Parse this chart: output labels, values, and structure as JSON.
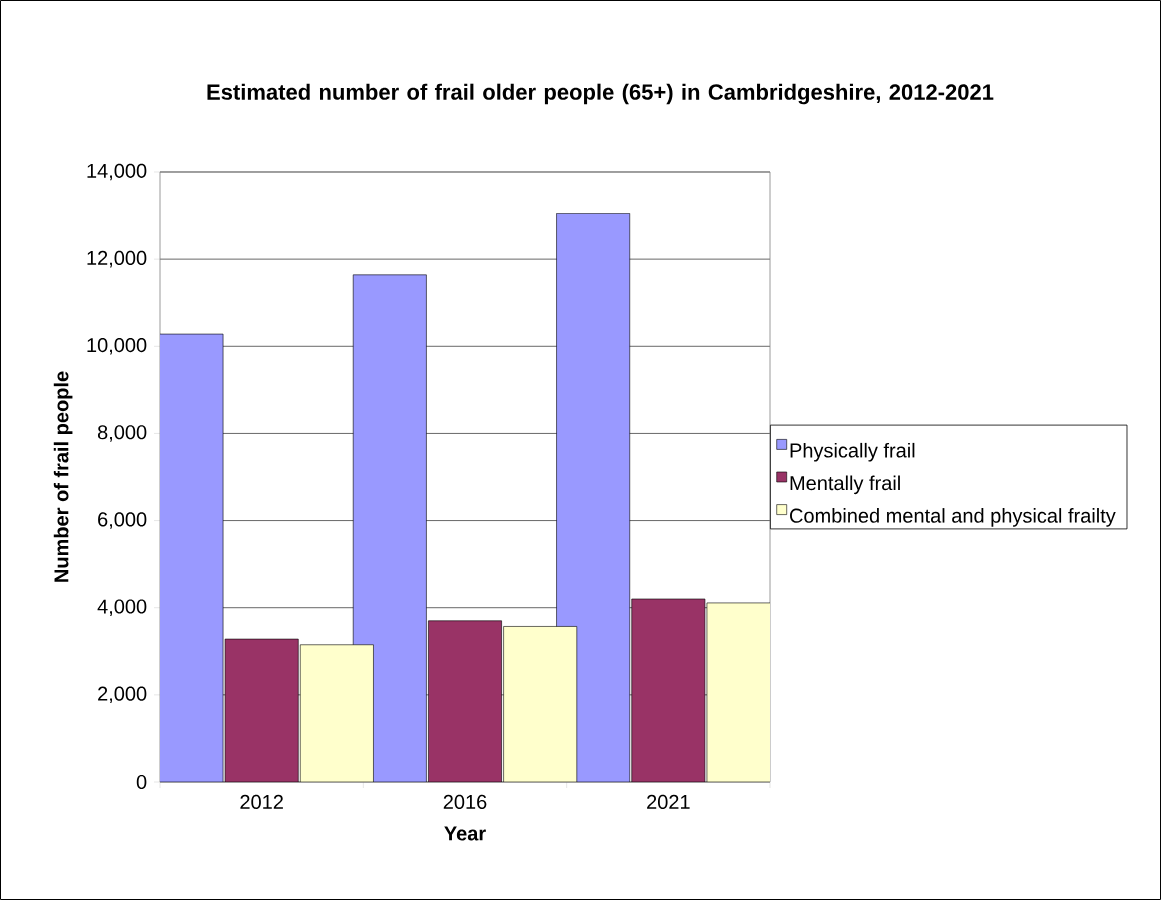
{
  "chart_data": {
    "type": "bar",
    "title": "Estimated number of frail older people (65+) in Cambridgeshire, 2012-2021",
    "xlabel": "Year",
    "ylabel": "Number of frail people",
    "categories": [
      "2012",
      "2016",
      "2021"
    ],
    "series": [
      {
        "name": "Physically frail",
        "color": "#9999ff",
        "values": [
          10280,
          11640,
          13050
        ]
      },
      {
        "name": "Mentally frail",
        "color": "#993366",
        "values": [
          3280,
          3700,
          4200
        ]
      },
      {
        "name": "Combined mental and physical frailty",
        "color": "#ffffcc",
        "values": [
          3150,
          3570,
          4110
        ]
      }
    ],
    "ylim": [
      0,
      14000
    ],
    "yticks": [
      {
        "value": 0,
        "label": "0"
      },
      {
        "value": 2000,
        "label": "2,000"
      },
      {
        "value": 4000,
        "label": "4,000"
      },
      {
        "value": 6000,
        "label": "6,000"
      },
      {
        "value": 8000,
        "label": "8,000"
      },
      {
        "value": 10000,
        "label": "10,000"
      },
      {
        "value": 12000,
        "label": "12,000"
      },
      {
        "value": 14000,
        "label": "14,000"
      }
    ],
    "grid": "y",
    "legend": "right"
  }
}
